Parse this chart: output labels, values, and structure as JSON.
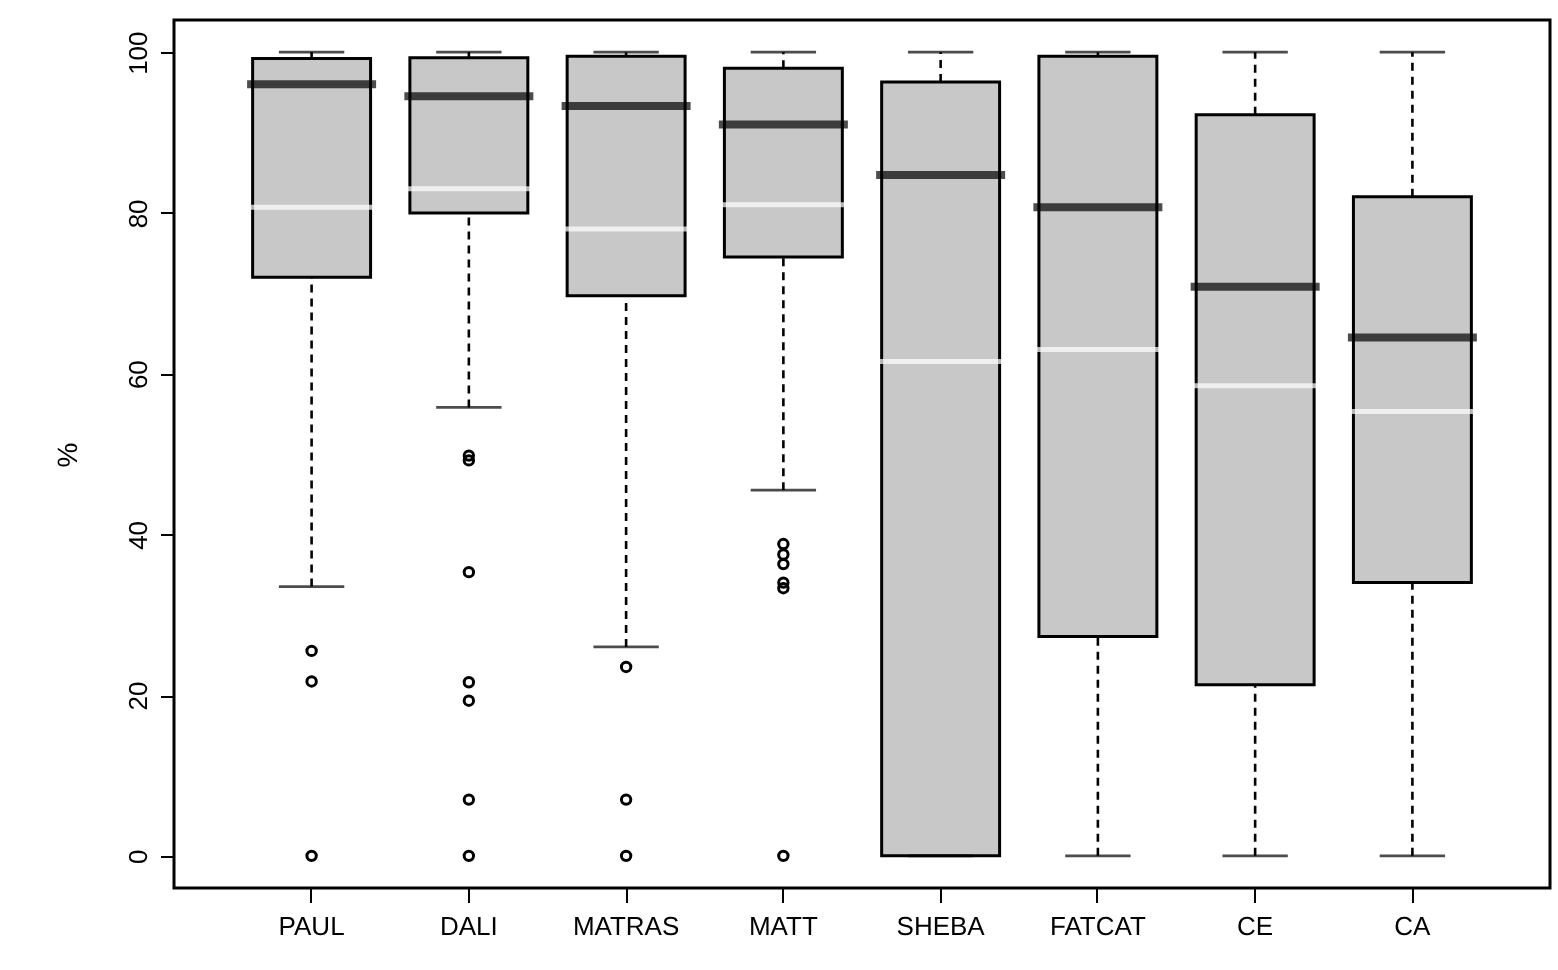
{
  "chart_data": {
    "type": "box",
    "ylabel": "%",
    "categories": [
      "PAUL",
      "DALI",
      "MATRAS",
      "MATT",
      "SHEBA",
      "FATCAT",
      "CE",
      "CA"
    ],
    "color": "#c8c8c8",
    "ylim": [
      -4,
      104
    ],
    "yticks": [
      0,
      20,
      40,
      60,
      80,
      100
    ],
    "grid": false,
    "line_style": "dashed",
    "marker": "circle",
    "boxes": [
      {
        "low": 33.5,
        "q1": 72,
        "median": 96,
        "q3": 99.2,
        "high": 100,
        "mean": 80.7,
        "outliers": [
          25.5,
          21.7,
          0
        ]
      },
      {
        "low": 55.8,
        "q1": 80,
        "median": 94.5,
        "q3": 99.3,
        "high": 100,
        "mean": 83,
        "outliers": [
          49.8,
          49.2,
          35.3,
          21.6,
          19.3,
          7,
          0
        ]
      },
      {
        "low": 26,
        "q1": 69.7,
        "median": 93.3,
        "q3": 99.5,
        "high": 100,
        "mean": 78,
        "outliers": [
          23.5,
          7,
          0
        ]
      },
      {
        "low": 45.5,
        "q1": 74.5,
        "median": 91,
        "q3": 98,
        "high": 100,
        "mean": 81,
        "outliers": [
          38.8,
          37.5,
          36.3,
          34,
          33.3,
          0
        ]
      },
      {
        "low": 0,
        "q1": 0,
        "median": 84.7,
        "q3": 96.3,
        "high": 100,
        "mean": 61.5
      },
      {
        "low": 0,
        "q1": 27.3,
        "median": 80.7,
        "q3": 99.5,
        "high": 100,
        "mean": 63
      },
      {
        "low": 0,
        "q1": 21.3,
        "median": 70.8,
        "q3": 92.2,
        "high": 100,
        "mean": 58.5
      },
      {
        "low": 0,
        "q1": 34,
        "median": 64.5,
        "q3": 82,
        "high": 100,
        "mean": 55.3
      }
    ]
  }
}
